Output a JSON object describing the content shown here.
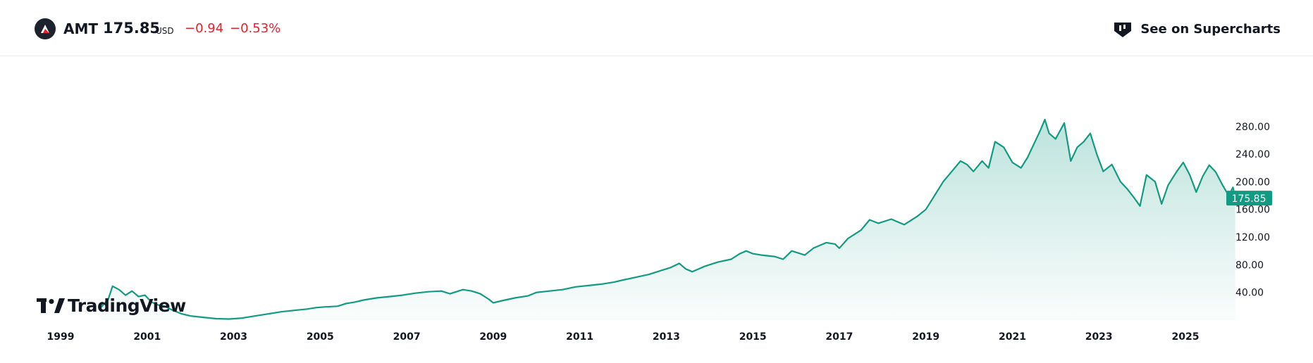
{
  "header": {
    "symbol": "AMT",
    "price": "175.85",
    "currency": "USD",
    "change": "−0.94",
    "change_pct": "−0.53%",
    "supercharts_label": "See on Supercharts",
    "logo_icon": "amt-logo-icon",
    "supercharts_icon": "supercharts-icon"
  },
  "branding": {
    "wordmark": "TradingView"
  },
  "colors": {
    "line": "#139a83",
    "negative": "#e5212e",
    "badge": "#139a83"
  },
  "chart_data": {
    "type": "area",
    "x_ticks": [
      "1999",
      "2001",
      "2003",
      "2005",
      "2007",
      "2009",
      "2011",
      "2013",
      "2015",
      "2017",
      "2019",
      "2021",
      "2023",
      "2025"
    ],
    "y_ticks": [
      "40.00",
      "80.00",
      "120.00",
      "160.00",
      "200.00",
      "240.00",
      "280.00"
    ],
    "y_tick_values": [
      40,
      80,
      120,
      160,
      200,
      240,
      280
    ],
    "ylim": [
      0,
      295
    ],
    "xlim": [
      1998.6,
      2026.2
    ],
    "last_value_label": "175.85",
    "series": [
      {
        "points": [
          [
            1999.9,
            16
          ],
          [
            2000.1,
            30
          ],
          [
            2000.2,
            49
          ],
          [
            2000.35,
            44
          ],
          [
            2000.5,
            36
          ],
          [
            2000.65,
            42
          ],
          [
            2000.8,
            34
          ],
          [
            2000.95,
            36
          ],
          [
            2001.1,
            26
          ],
          [
            2001.25,
            22
          ],
          [
            2001.4,
            20
          ],
          [
            2001.6,
            14
          ],
          [
            2001.8,
            9
          ],
          [
            2002.0,
            6
          ],
          [
            2002.3,
            4
          ],
          [
            2002.6,
            2
          ],
          [
            2002.9,
            1.5
          ],
          [
            2003.2,
            3
          ],
          [
            2003.5,
            6
          ],
          [
            2003.8,
            9
          ],
          [
            2004.1,
            12
          ],
          [
            2004.4,
            14
          ],
          [
            2004.7,
            16
          ],
          [
            2004.9,
            18
          ],
          [
            2005.1,
            19
          ],
          [
            2005.4,
            20
          ],
          [
            2005.6,
            24
          ],
          [
            2005.8,
            26
          ],
          [
            2006.0,
            29
          ],
          [
            2006.3,
            32
          ],
          [
            2006.6,
            34
          ],
          [
            2006.9,
            36
          ],
          [
            2007.2,
            39
          ],
          [
            2007.5,
            41
          ],
          [
            2007.8,
            42
          ],
          [
            2008.0,
            38
          ],
          [
            2008.3,
            44
          ],
          [
            2008.5,
            42
          ],
          [
            2008.7,
            38
          ],
          [
            2008.9,
            30
          ],
          [
            2009.0,
            25
          ],
          [
            2009.2,
            28
          ],
          [
            2009.5,
            32
          ],
          [
            2009.8,
            35
          ],
          [
            2010.0,
            40
          ],
          [
            2010.3,
            42
          ],
          [
            2010.6,
            44
          ],
          [
            2010.9,
            48
          ],
          [
            2011.2,
            50
          ],
          [
            2011.5,
            52
          ],
          [
            2011.8,
            55
          ],
          [
            2012.0,
            58
          ],
          [
            2012.3,
            62
          ],
          [
            2012.6,
            66
          ],
          [
            2012.9,
            72
          ],
          [
            2013.1,
            76
          ],
          [
            2013.3,
            82
          ],
          [
            2013.45,
            74
          ],
          [
            2013.6,
            70
          ],
          [
            2013.9,
            78
          ],
          [
            2014.2,
            84
          ],
          [
            2014.5,
            88
          ],
          [
            2014.7,
            96
          ],
          [
            2014.85,
            100
          ],
          [
            2015.0,
            96
          ],
          [
            2015.2,
            94
          ],
          [
            2015.5,
            92
          ],
          [
            2015.7,
            88
          ],
          [
            2015.9,
            100
          ],
          [
            2016.2,
            94
          ],
          [
            2016.4,
            104
          ],
          [
            2016.7,
            112
          ],
          [
            2016.9,
            110
          ],
          [
            2017.0,
            104
          ],
          [
            2017.2,
            118
          ],
          [
            2017.5,
            130
          ],
          [
            2017.7,
            145
          ],
          [
            2017.9,
            140
          ],
          [
            2018.2,
            146
          ],
          [
            2018.5,
            138
          ],
          [
            2018.8,
            150
          ],
          [
            2019.0,
            160
          ],
          [
            2019.2,
            180
          ],
          [
            2019.4,
            200
          ],
          [
            2019.6,
            215
          ],
          [
            2019.8,
            230
          ],
          [
            2019.95,
            225
          ],
          [
            2020.1,
            215
          ],
          [
            2020.3,
            230
          ],
          [
            2020.45,
            220
          ],
          [
            2020.6,
            258
          ],
          [
            2020.8,
            250
          ],
          [
            2021.0,
            228
          ],
          [
            2021.2,
            220
          ],
          [
            2021.35,
            235
          ],
          [
            2021.5,
            255
          ],
          [
            2021.65,
            275
          ],
          [
            2021.75,
            290
          ],
          [
            2021.85,
            270
          ],
          [
            2022.0,
            262
          ],
          [
            2022.2,
            285
          ],
          [
            2022.35,
            230
          ],
          [
            2022.5,
            250
          ],
          [
            2022.65,
            258
          ],
          [
            2022.8,
            270
          ],
          [
            2022.95,
            240
          ],
          [
            2023.1,
            215
          ],
          [
            2023.3,
            225
          ],
          [
            2023.5,
            200
          ],
          [
            2023.65,
            190
          ],
          [
            2023.8,
            178
          ],
          [
            2023.95,
            165
          ],
          [
            2024.1,
            210
          ],
          [
            2024.3,
            200
          ],
          [
            2024.45,
            168
          ],
          [
            2024.6,
            195
          ],
          [
            2024.8,
            215
          ],
          [
            2024.95,
            228
          ],
          [
            2025.1,
            210
          ],
          [
            2025.25,
            185
          ],
          [
            2025.4,
            208
          ],
          [
            2025.55,
            224
          ],
          [
            2025.7,
            214
          ],
          [
            2025.85,
            196
          ],
          [
            2026.0,
            180
          ],
          [
            2026.1,
            192
          ],
          [
            2026.15,
            175.85
          ]
        ]
      }
    ]
  }
}
